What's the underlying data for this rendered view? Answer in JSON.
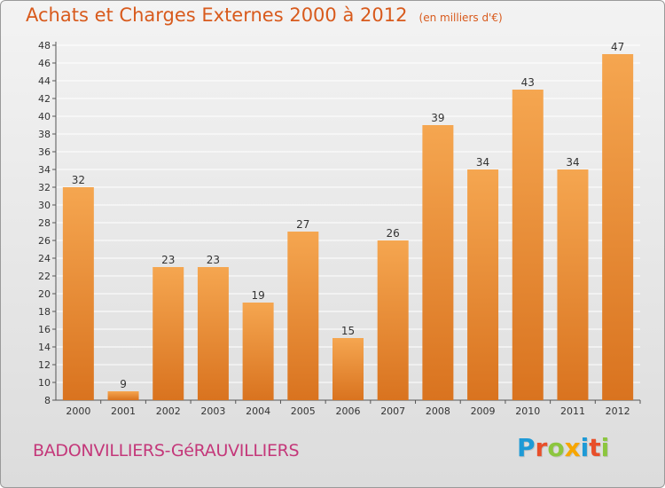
{
  "title": "Achats et Charges Externes 2000 à 2012",
  "subtitle": "(en milliers d'€)",
  "location": "BADONVILLIERS-GéRAUVILLIERS",
  "logo": {
    "text": "Proxiti",
    "colors": [
      "#1e9ad6",
      "#e84f2a",
      "#8cc63f",
      "#f7a600",
      "#1e9ad6",
      "#e84f2a",
      "#8cc63f"
    ]
  },
  "colors": {
    "bar_light": "#f5a650",
    "bar_dark": "#d9731f",
    "title": "#d85a1c",
    "location": "#c4387a"
  },
  "chart_data": {
    "type": "bar",
    "categories": [
      "2000",
      "2001",
      "2002",
      "2003",
      "2004",
      "2005",
      "2006",
      "2007",
      "2008",
      "2009",
      "2010",
      "2011",
      "2012"
    ],
    "values": [
      32,
      9,
      23,
      23,
      19,
      27,
      15,
      26,
      39,
      34,
      43,
      34,
      47
    ],
    "ylim": [
      8,
      48
    ],
    "yticks": [
      8,
      10,
      12,
      14,
      16,
      18,
      20,
      22,
      24,
      26,
      28,
      30,
      32,
      34,
      36,
      38,
      40,
      42,
      44,
      46,
      48
    ],
    "grid": true,
    "data_labels": true
  }
}
